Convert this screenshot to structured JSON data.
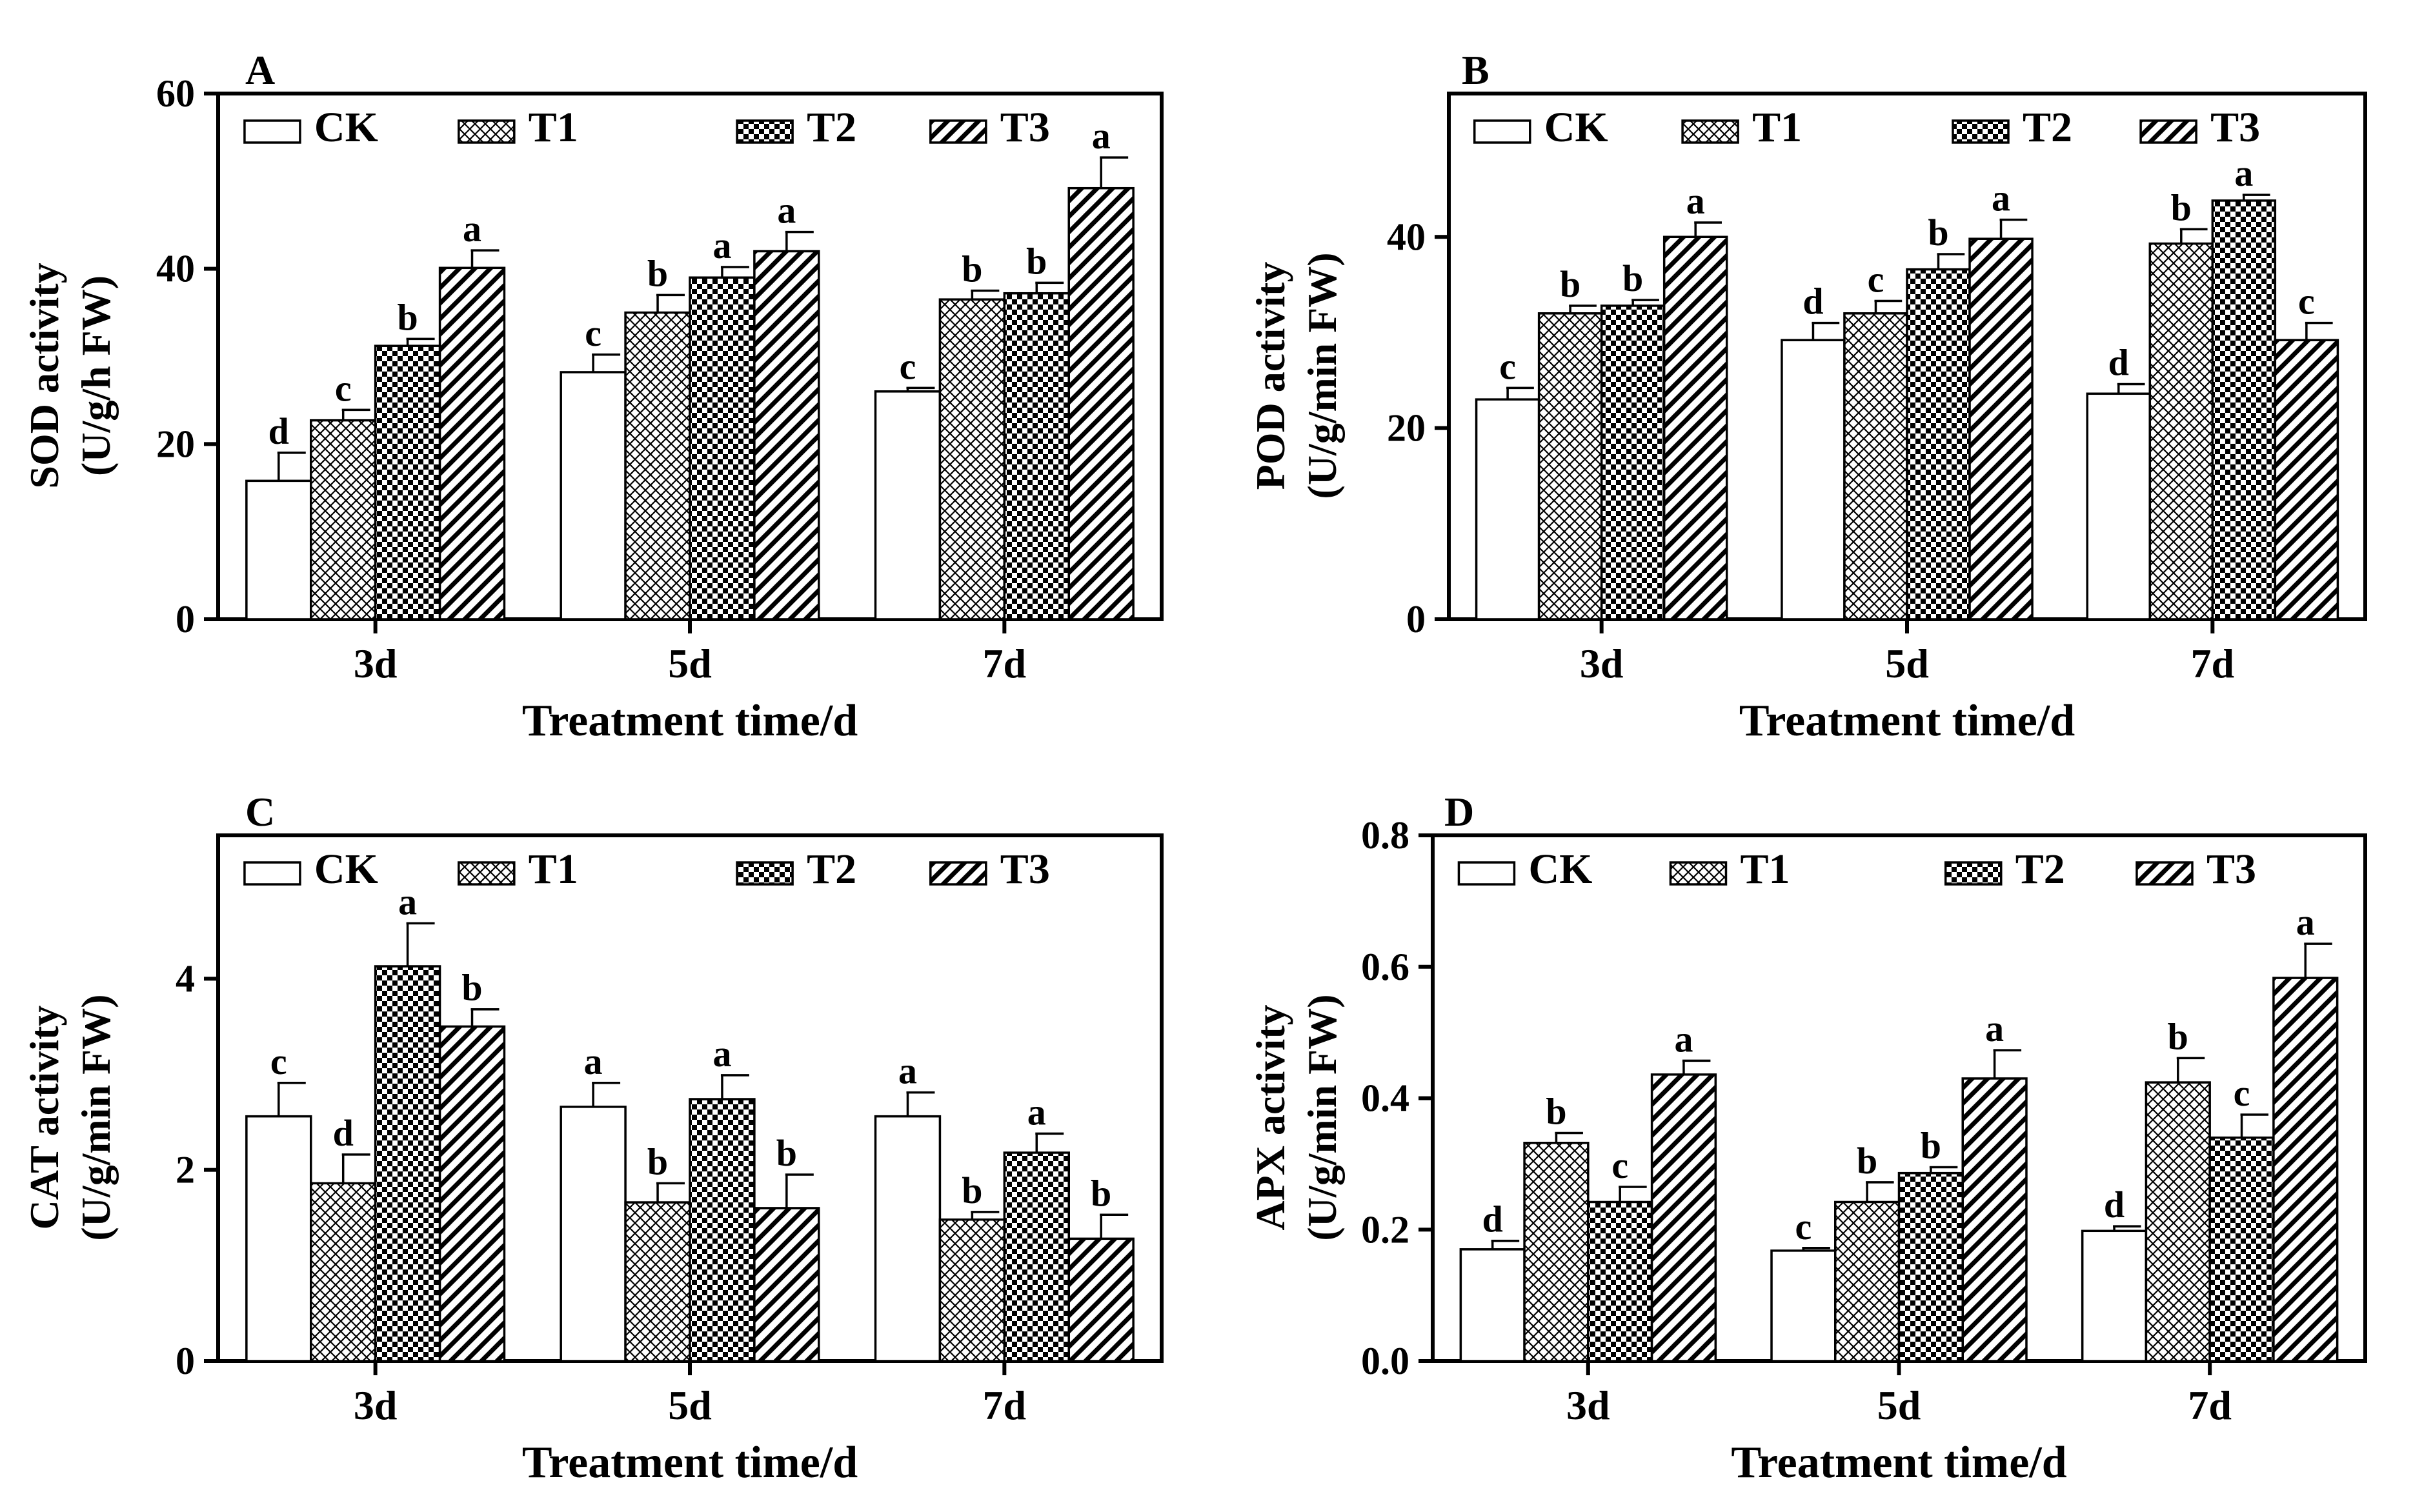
{
  "colors": {
    "ink": "#000000",
    "background": "#ffffff"
  },
  "legend_series": [
    "CK",
    "T1",
    "T2",
    "T3"
  ],
  "chart_data": [
    {
      "type": "bar",
      "panel_label": "A",
      "categories": [
        "3d",
        "5d",
        "7d"
      ],
      "xlabel": "Treatment time/d",
      "ylabel_line1": "SOD activity",
      "ylabel_line2": "(U/g/h FW)",
      "ylim": [
        0,
        60
      ],
      "yticks": [
        0,
        20,
        40,
        60
      ],
      "ytick_labels": [
        "0",
        "20",
        "40",
        "60"
      ],
      "series": [
        {
          "name": "CK",
          "pattern": "none",
          "values": [
            15.8,
            28.2,
            26.0
          ],
          "errors": [
            3.2,
            2.0,
            0.4
          ],
          "letters": [
            "d",
            "c",
            "c"
          ]
        },
        {
          "name": "T1",
          "pattern": "diamond",
          "values": [
            22.7,
            35.0,
            36.5
          ],
          "errors": [
            1.2,
            2.0,
            1.0
          ],
          "letters": [
            "c",
            "b",
            "b"
          ]
        },
        {
          "name": "T2",
          "pattern": "checker",
          "values": [
            31.2,
            39.0,
            37.2
          ],
          "errors": [
            0.8,
            1.2,
            1.2
          ],
          "letters": [
            "b",
            "a",
            "b"
          ]
        },
        {
          "name": "T3",
          "pattern": "diagonal",
          "values": [
            40.1,
            42.0,
            49.2
          ],
          "errors": [
            2.0,
            2.2,
            3.5
          ],
          "letters": [
            "a",
            "a",
            "a"
          ]
        }
      ]
    },
    {
      "type": "bar",
      "panel_label": "B",
      "categories": [
        "3d",
        "5d",
        "7d"
      ],
      "xlabel": "Treatment time/d",
      "ylabel_line1": "POD activity",
      "ylabel_line2": "(U/g/min FW)",
      "ylim": [
        0,
        55
      ],
      "yticks": [
        0,
        20,
        40
      ],
      "ytick_labels": [
        "0",
        "20",
        "40"
      ],
      "series": [
        {
          "name": "CK",
          "pattern": "none",
          "values": [
            23.0,
            29.2,
            23.6
          ],
          "errors": [
            1.2,
            1.8,
            1.0
          ],
          "letters": [
            "c",
            "d",
            "d"
          ]
        },
        {
          "name": "T1",
          "pattern": "diamond",
          "values": [
            32.0,
            32.0,
            39.3
          ],
          "errors": [
            0.8,
            1.3,
            1.5
          ],
          "letters": [
            "b",
            "c",
            "b"
          ]
        },
        {
          "name": "T2",
          "pattern": "checker",
          "values": [
            32.8,
            36.6,
            43.8
          ],
          "errors": [
            0.6,
            1.6,
            0.6
          ],
          "letters": [
            "b",
            "b",
            "a"
          ]
        },
        {
          "name": "T3",
          "pattern": "diagonal",
          "values": [
            40.0,
            39.8,
            29.2
          ],
          "errors": [
            1.5,
            2.0,
            1.8
          ],
          "letters": [
            "a",
            "a",
            "c"
          ]
        }
      ]
    },
    {
      "type": "bar",
      "panel_label": "C",
      "categories": [
        "3d",
        "5d",
        "7d"
      ],
      "xlabel": "Treatment time/d",
      "ylabel_line1": "CAT activity",
      "ylabel_line2": "(U/g/min FW)",
      "ylim": [
        0,
        5.5
      ],
      "yticks": [
        0,
        2,
        4
      ],
      "ytick_labels": [
        "0",
        "2",
        "4"
      ],
      "series": [
        {
          "name": "CK",
          "pattern": "none",
          "values": [
            2.56,
            2.66,
            2.56
          ],
          "errors": [
            0.35,
            0.25,
            0.25
          ],
          "letters": [
            "c",
            "a",
            "a"
          ]
        },
        {
          "name": "T1",
          "pattern": "diamond",
          "values": [
            1.86,
            1.66,
            1.48
          ],
          "errors": [
            0.3,
            0.2,
            0.08
          ],
          "letters": [
            "d",
            "b",
            "b"
          ]
        },
        {
          "name": "T2",
          "pattern": "checker",
          "values": [
            4.13,
            2.74,
            2.18
          ],
          "errors": [
            0.45,
            0.25,
            0.2
          ],
          "letters": [
            "a",
            "a",
            "a"
          ]
        },
        {
          "name": "T3",
          "pattern": "diagonal",
          "values": [
            3.5,
            1.6,
            1.28
          ],
          "errors": [
            0.18,
            0.35,
            0.25
          ],
          "letters": [
            "b",
            "b",
            "b"
          ]
        }
      ]
    },
    {
      "type": "bar",
      "panel_label": "D",
      "categories": [
        "3d",
        "5d",
        "7d"
      ],
      "xlabel": "Treatment time/d",
      "ylabel_line1": "APX activity",
      "ylabel_line2": "(U/g/min FW)",
      "ylim": [
        0,
        0.8
      ],
      "yticks": [
        0,
        0.2,
        0.4,
        0.6,
        0.8
      ],
      "ytick_labels": [
        "0.0",
        "0.2",
        "0.4",
        "0.6",
        "0.8"
      ],
      "series": [
        {
          "name": "CK",
          "pattern": "none",
          "values": [
            0.17,
            0.168,
            0.198
          ],
          "errors": [
            0.013,
            0.004,
            0.007
          ],
          "letters": [
            "d",
            "c",
            "d"
          ]
        },
        {
          "name": "T1",
          "pattern": "diamond",
          "values": [
            0.332,
            0.242,
            0.424
          ],
          "errors": [
            0.015,
            0.03,
            0.037
          ],
          "letters": [
            "b",
            "b",
            "b"
          ]
        },
        {
          "name": "T2",
          "pattern": "checker",
          "values": [
            0.242,
            0.286,
            0.34
          ],
          "errors": [
            0.023,
            0.009,
            0.035
          ],
          "letters": [
            "c",
            "b",
            "c"
          ]
        },
        {
          "name": "T3",
          "pattern": "diagonal",
          "values": [
            0.436,
            0.43,
            0.583
          ],
          "errors": [
            0.021,
            0.043,
            0.052
          ],
          "letters": [
            "a",
            "a",
            "a"
          ]
        }
      ]
    }
  ]
}
